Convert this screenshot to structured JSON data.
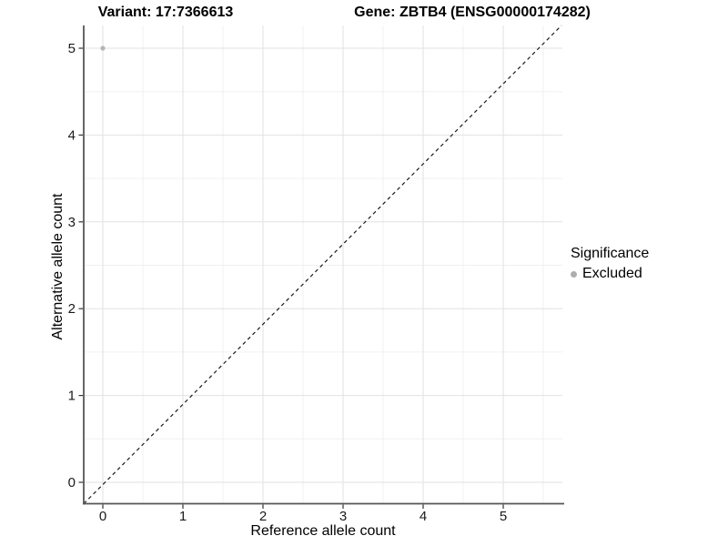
{
  "header": {
    "variant_title": "Variant: 17:7366613",
    "gene_title": "Gene: ZBTB4 (ENSG00000174282)"
  },
  "legend": {
    "title": "Significance",
    "items": [
      {
        "label": "Excluded",
        "color": "#adadad"
      }
    ]
  },
  "chart_data": {
    "type": "scatter",
    "title_left": "Variant: 17:7366613",
    "title_right": "Gene: ZBTB4 (ENSG00000174282)",
    "xlabel": "Reference allele count",
    "ylabel": "Alternative allele count",
    "xlim": [
      -0.26,
      5.75
    ],
    "ylim": [
      -0.25,
      5.27
    ],
    "x_ticks": [
      0,
      1,
      2,
      3,
      4,
      5
    ],
    "y_ticks": [
      0,
      1,
      2,
      3,
      4,
      5
    ],
    "x_minor_ticks": [
      0.5,
      1.5,
      2.5,
      3.5,
      4.5,
      5.5
    ],
    "y_minor_ticks": [
      0.5,
      1.5,
      2.5,
      3.5,
      4.5
    ],
    "grid": "major+minor",
    "legend_position": "right",
    "legend_title": "Significance",
    "series": [
      {
        "name": "Excluded",
        "color": "#b5b5b5",
        "points": [
          {
            "x": 0,
            "y": 5
          }
        ]
      }
    ],
    "reference_line": {
      "kind": "identity",
      "equation": "y = x",
      "style": "dashed",
      "color": "#1a1a1a"
    },
    "colors": {
      "point": "#b5b5b5",
      "major_grid": "#e2e2e2",
      "minor_grid": "#f0f0f0",
      "axis_line": "#555555",
      "tick": "#333333",
      "tick_label": "#1a1a1a",
      "background": "#ffffff"
    }
  }
}
